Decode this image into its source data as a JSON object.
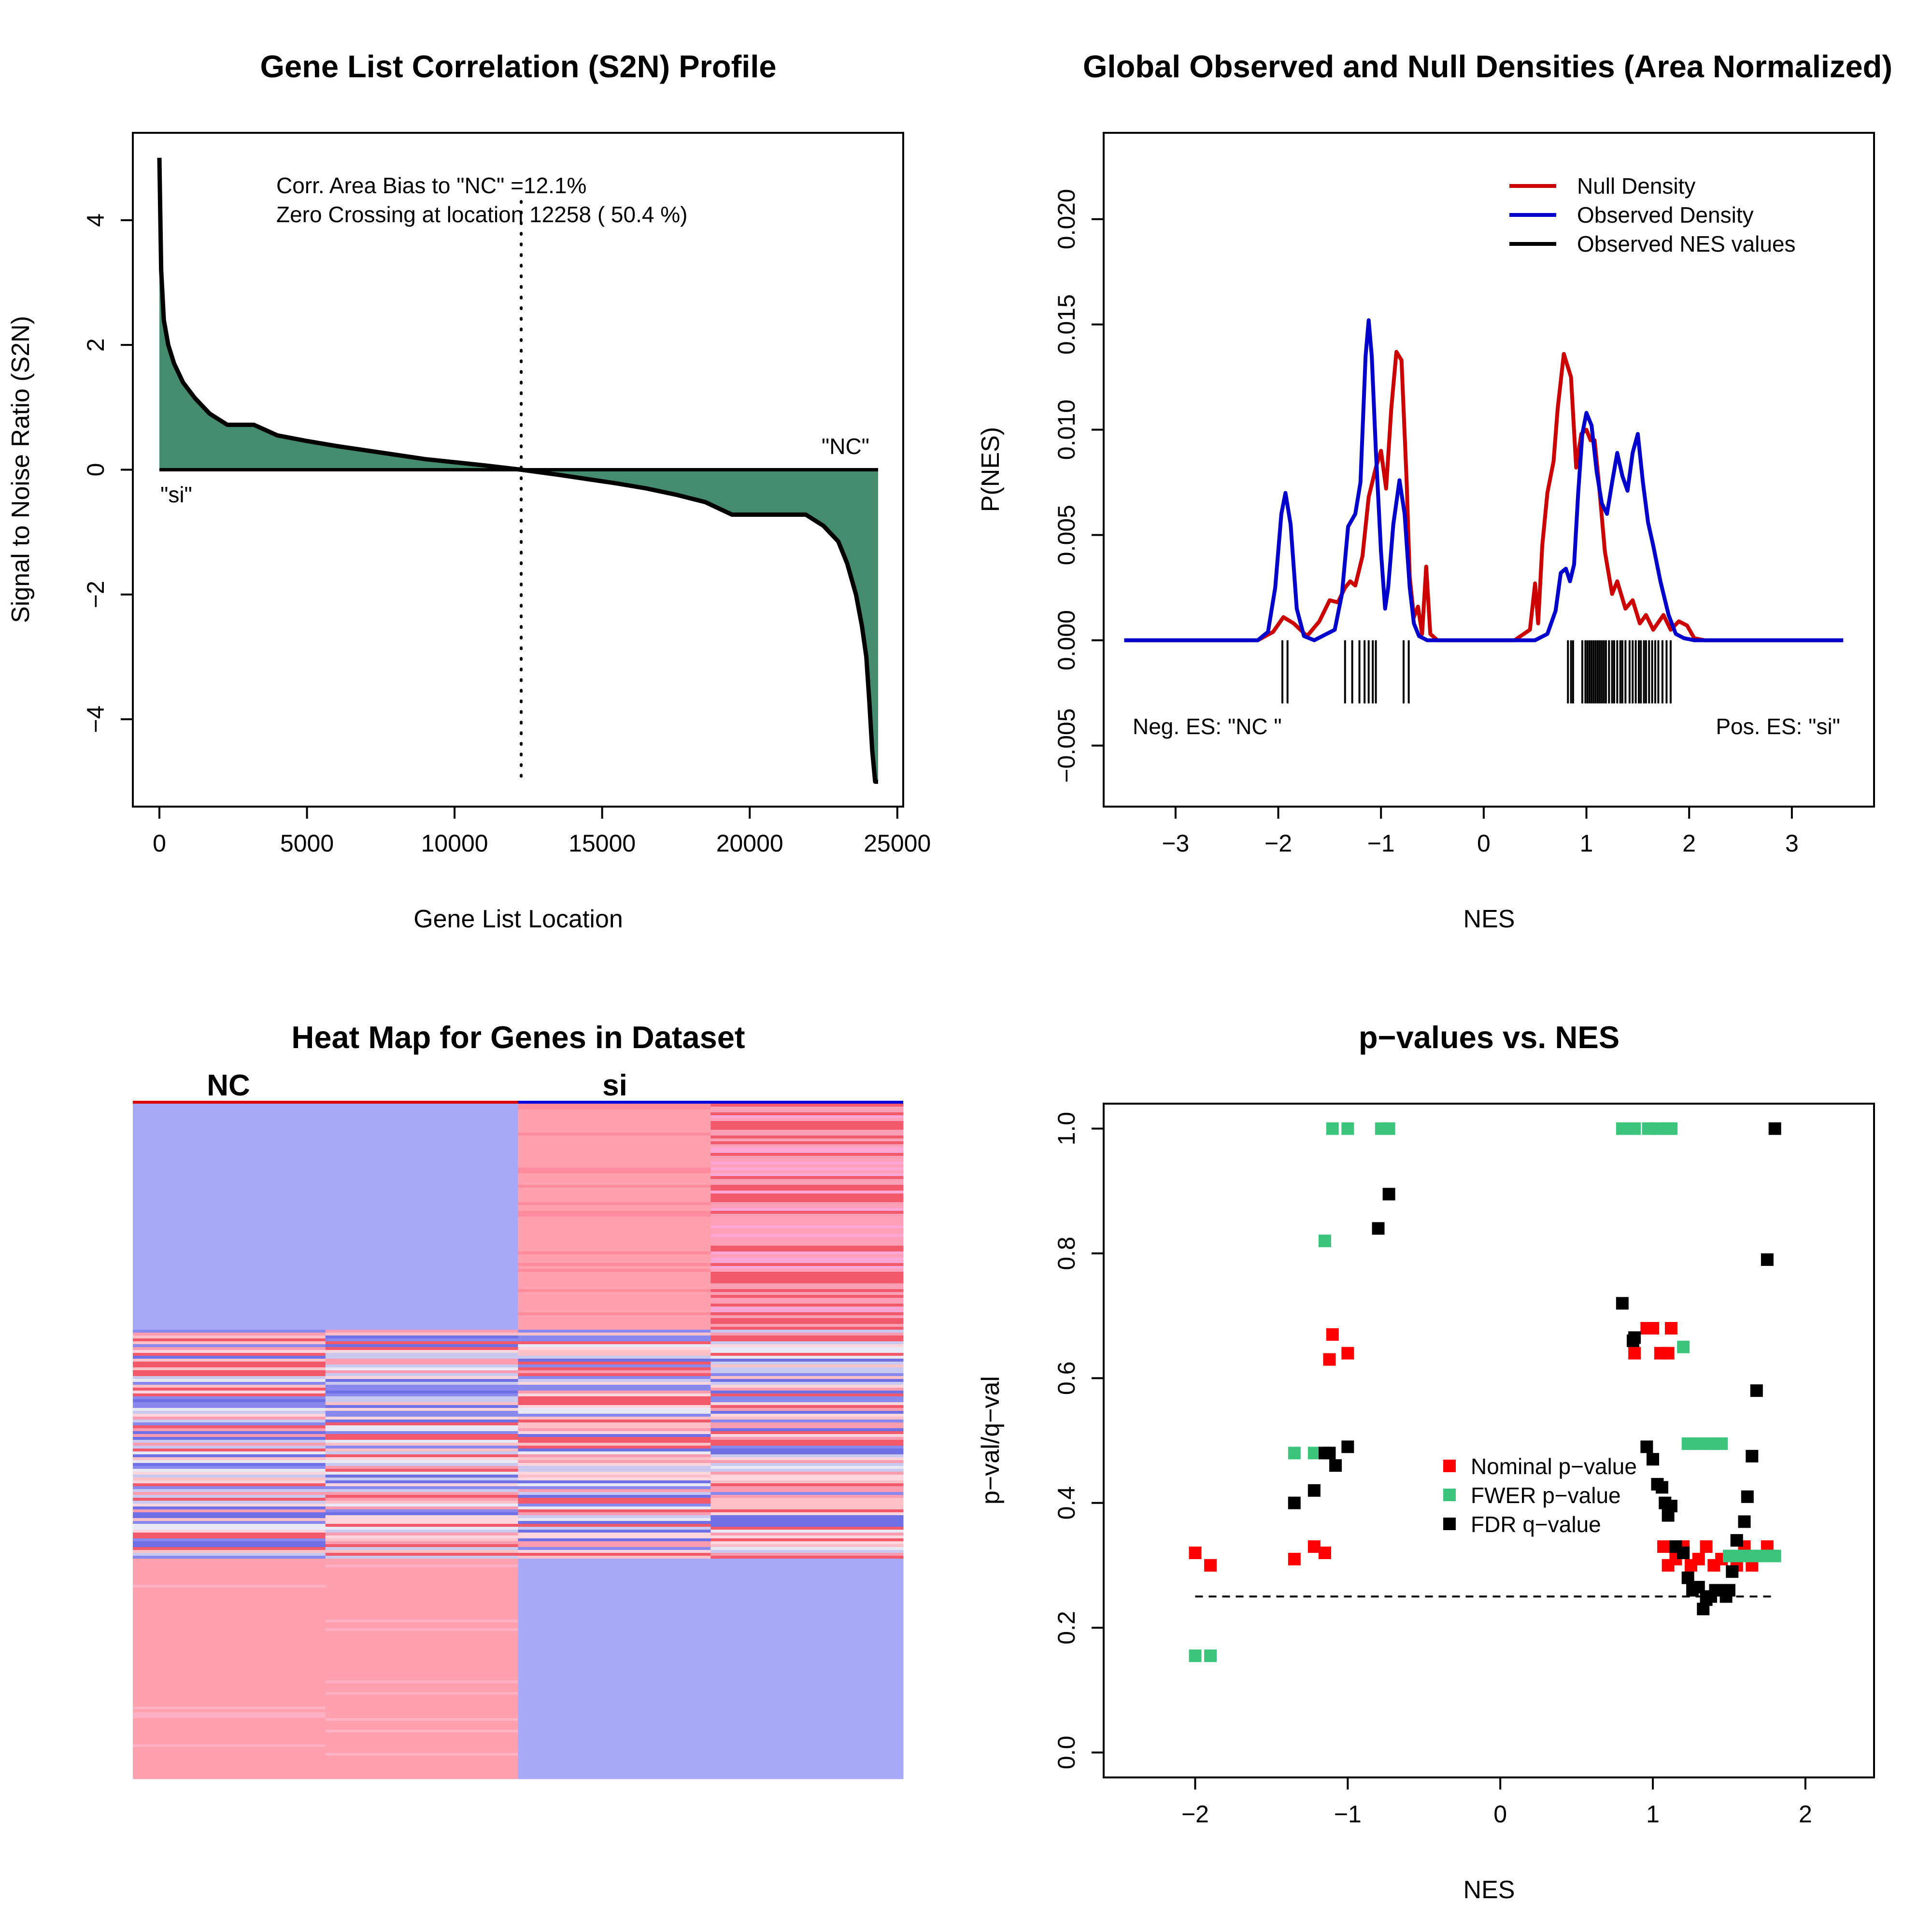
{
  "chart_data": [
    {
      "type": "area",
      "title": "Gene List Correlation (S2N) Profile",
      "xlabel": "Gene List Location",
      "ylabel": "Signal to Noise Ratio (S2N)",
      "xlim": [
        -900,
        25200
      ],
      "ylim": [
        -5.4,
        5.4
      ],
      "xticks": [
        0,
        5000,
        10000,
        15000,
        20000,
        25000
      ],
      "yticks": [
        -4,
        -2,
        0,
        2,
        4
      ],
      "annotations": {
        "bias": "Corr. Area Bias to \"NC\" =12.1%",
        "zero": "Zero Crossing at location  12258  ( 50.4  %)",
        "right_label": "\"NC\"",
        "left_label": "\"si\""
      },
      "zero_crossing": 12258,
      "fill_color": "#458B6F",
      "profile": {
        "x": [
          0,
          60,
          150,
          300,
          500,
          800,
          1200,
          1700,
          2300,
          3200,
          4000,
          5000,
          6000,
          7000,
          8000,
          9000,
          10000,
          11000,
          12258,
          13500,
          14500,
          15500,
          16500,
          17500,
          18500,
          19400,
          20500,
          21900,
          22500,
          23000,
          23300,
          23600,
          23800,
          23950,
          24050,
          24150,
          24250,
          24350
        ],
        "y": [
          5.0,
          3.2,
          2.4,
          2.0,
          1.7,
          1.4,
          1.15,
          0.9,
          0.72,
          0.72,
          0.55,
          0.46,
          0.38,
          0.31,
          0.24,
          0.17,
          0.12,
          0.07,
          0.0,
          -0.08,
          -0.15,
          -0.22,
          -0.3,
          -0.4,
          -0.52,
          -0.72,
          -0.72,
          -0.72,
          -0.9,
          -1.15,
          -1.5,
          -2.0,
          -2.5,
          -3.0,
          -3.7,
          -4.5,
          -5.0,
          -5.0
        ]
      }
    },
    {
      "type": "line",
      "title": "Global Observed and Null Densities (Area Normalized)",
      "xlabel": "NES",
      "ylabel": "P(NES)",
      "xlim": [
        -3.7,
        3.8
      ],
      "ylim": [
        -0.0079,
        0.0241
      ],
      "xticks": [
        -3,
        -2,
        -1,
        0,
        1,
        2,
        3
      ],
      "yticks": [
        -0.005,
        0.0,
        0.005,
        0.01,
        0.015,
        0.02
      ],
      "ytick_labels": [
        "−0.005",
        "0.000",
        "0.005",
        "0.010",
        "0.015",
        "0.020"
      ],
      "series": [
        {
          "name": "Null Density",
          "color": "#CC0000",
          "x": [
            -3.5,
            -2.2,
            -2.05,
            -1.95,
            -1.85,
            -1.72,
            -1.6,
            -1.5,
            -1.42,
            -1.35,
            -1.3,
            -1.25,
            -1.18,
            -1.12,
            -1.05,
            -1.0,
            -0.95,
            -0.9,
            -0.85,
            -0.8,
            -0.75,
            -0.72,
            -0.68,
            -0.64,
            -0.6,
            -0.56,
            -0.52,
            -0.45,
            -0.3,
            0.3,
            0.45,
            0.5,
            0.53,
            0.57,
            0.62,
            0.68,
            0.72,
            0.78,
            0.85,
            0.9,
            0.95,
            1.0,
            1.04,
            1.08,
            1.12,
            1.18,
            1.25,
            1.3,
            1.38,
            1.45,
            1.52,
            1.58,
            1.65,
            1.75,
            1.82,
            1.9,
            1.98,
            2.05,
            2.15,
            3.5
          ],
          "y": [
            0,
            0,
            0.0004,
            0.0011,
            0.0008,
            0.0002,
            0.0009,
            0.0019,
            0.0018,
            0.0025,
            0.0028,
            0.0026,
            0.004,
            0.0068,
            0.0082,
            0.009,
            0.0072,
            0.011,
            0.0137,
            0.0133,
            0.0075,
            0.003,
            0.0011,
            0.0016,
            0.0003,
            0.0035,
            0.0003,
            0.0,
            0,
            0,
            0.0005,
            0.0027,
            0.0008,
            0.0045,
            0.007,
            0.0085,
            0.011,
            0.0136,
            0.0125,
            0.0082,
            0.0098,
            0.01,
            0.0095,
            0.0095,
            0.0075,
            0.0042,
            0.0022,
            0.0028,
            0.0015,
            0.0019,
            0.0008,
            0.0012,
            0.0005,
            0.0012,
            0.0005,
            0.0009,
            0.0007,
            0.0001,
            0,
            0
          ]
        },
        {
          "name": "Observed Density",
          "color": "#0000CC",
          "x": [
            -3.5,
            -2.2,
            -2.1,
            -2.03,
            -1.97,
            -1.93,
            -1.88,
            -1.82,
            -1.75,
            -1.65,
            -1.45,
            -1.38,
            -1.32,
            -1.25,
            -1.2,
            -1.15,
            -1.12,
            -1.09,
            -1.05,
            -1.0,
            -0.96,
            -0.93,
            -0.88,
            -0.82,
            -0.77,
            -0.72,
            -0.68,
            -0.63,
            -0.55,
            -0.45,
            0.5,
            0.62,
            0.7,
            0.75,
            0.8,
            0.84,
            0.88,
            0.92,
            0.96,
            1.0,
            1.05,
            1.1,
            1.15,
            1.2,
            1.25,
            1.3,
            1.35,
            1.4,
            1.45,
            1.5,
            1.55,
            1.6,
            1.65,
            1.72,
            1.8,
            1.87,
            1.95,
            2.05,
            3.5
          ],
          "y": [
            0,
            0,
            0.0004,
            0.0025,
            0.006,
            0.007,
            0.0055,
            0.0015,
            0.0002,
            0,
            0.0005,
            0.0022,
            0.0054,
            0.006,
            0.0075,
            0.0135,
            0.0152,
            0.0135,
            0.009,
            0.0042,
            0.0015,
            0.0025,
            0.0055,
            0.0076,
            0.006,
            0.0025,
            0.0008,
            0.0002,
            0,
            0,
            0,
            0.0003,
            0.0014,
            0.0032,
            0.0034,
            0.0028,
            0.0036,
            0.007,
            0.0098,
            0.0108,
            0.0102,
            0.008,
            0.0065,
            0.006,
            0.0075,
            0.0089,
            0.0078,
            0.0071,
            0.0089,
            0.0098,
            0.0075,
            0.0056,
            0.0045,
            0.0028,
            0.0012,
            0.0003,
            0.0001,
            0,
            0
          ]
        }
      ],
      "rug_label": "Observed NES values",
      "rug": [
        -1.96,
        -1.91,
        -1.35,
        -1.28,
        -1.21,
        -1.16,
        -1.12,
        -1.08,
        -1.05,
        -0.78,
        -0.73,
        0.82,
        0.85,
        0.87,
        0.96,
        0.99,
        1.01,
        1.03,
        1.05,
        1.07,
        1.09,
        1.11,
        1.13,
        1.15,
        1.17,
        1.19,
        1.22,
        1.25,
        1.27,
        1.3,
        1.33,
        1.35,
        1.38,
        1.42,
        1.45,
        1.48,
        1.51,
        1.53,
        1.56,
        1.58,
        1.61,
        1.64,
        1.67,
        1.7,
        1.74,
        1.78,
        1.82
      ],
      "corner_left": "Neg. ES: \"NC \"",
      "corner_right": "Pos. ES: \"si\""
    },
    {
      "type": "heatmap",
      "title": "Heat Map for Genes in Dataset",
      "groups": [
        {
          "label": "NC",
          "color": "#DD0000"
        },
        {
          "label": "si",
          "color": "#0000DD"
        }
      ],
      "columns": 4,
      "blue_color": "#A8A8F8",
      "pink_color": "#FFA0AF",
      "magenta_color": "#FFA6D4",
      "red_color": "#F25A6B"
    },
    {
      "type": "scatter",
      "title": "p−values vs. NES",
      "xlabel": "NES",
      "ylabel": "p−val/q−val",
      "xlim": [
        -2.6,
        2.45
      ],
      "ylim": [
        -0.04,
        1.04
      ],
      "xticks": [
        -2,
        -1,
        0,
        1,
        2
      ],
      "yticks": [
        0.0,
        0.2,
        0.4,
        0.6,
        0.8,
        1.0
      ],
      "threshold": 0.25,
      "series": [
        {
          "name": "Nominal p−value",
          "color": "#FF0000",
          "points": [
            [
              -2.0,
              0.32
            ],
            [
              -1.9,
              0.3
            ],
            [
              -1.35,
              0.31
            ],
            [
              -1.22,
              0.33
            ],
            [
              -1.15,
              0.32
            ],
            [
              -1.12,
              0.63
            ],
            [
              -1.1,
              0.67
            ],
            [
              -1.0,
              0.64
            ],
            [
              0.88,
              0.64
            ],
            [
              0.96,
              0.68
            ],
            [
              1.0,
              0.68
            ],
            [
              1.05,
              0.64
            ],
            [
              1.1,
              0.64
            ],
            [
              1.12,
              0.68
            ],
            [
              1.07,
              0.33
            ],
            [
              1.1,
              0.3
            ],
            [
              1.15,
              0.31
            ],
            [
              1.2,
              0.33
            ],
            [
              1.25,
              0.3
            ],
            [
              1.3,
              0.31
            ],
            [
              1.35,
              0.33
            ],
            [
              1.4,
              0.3
            ],
            [
              1.45,
              0.31
            ],
            [
              1.55,
              0.3
            ],
            [
              1.6,
              0.33
            ],
            [
              1.65,
              0.3
            ],
            [
              1.75,
              0.33
            ]
          ]
        },
        {
          "name": "FWER p−value",
          "color": "#3CC47C",
          "points": [
            [
              -2.0,
              0.155
            ],
            [
              -1.9,
              0.155
            ],
            [
              -1.35,
              0.48
            ],
            [
              -1.22,
              0.48
            ],
            [
              -1.15,
              0.82
            ],
            [
              -1.1,
              1.0
            ],
            [
              -1.0,
              1.0
            ],
            [
              -0.78,
              1.0
            ],
            [
              -0.73,
              1.0
            ],
            [
              0.8,
              1.0
            ],
            [
              0.88,
              1.0
            ],
            [
              0.97,
              1.0
            ],
            [
              1.03,
              1.0
            ],
            [
              1.1,
              1.0
            ],
            [
              1.12,
              1.0
            ],
            [
              1.2,
              0.65
            ],
            [
              1.23,
              0.495
            ],
            [
              1.3,
              0.495
            ],
            [
              1.38,
              0.495
            ],
            [
              1.45,
              0.495
            ],
            [
              1.5,
              0.315
            ],
            [
              1.55,
              0.315
            ],
            [
              1.6,
              0.315
            ],
            [
              1.68,
              0.315
            ],
            [
              1.75,
              0.315
            ],
            [
              1.8,
              0.315
            ]
          ]
        },
        {
          "name": "FDR q−value",
          "color": "#000000",
          "points": [
            [
              -1.35,
              0.4
            ],
            [
              -1.22,
              0.42
            ],
            [
              -1.15,
              0.48
            ],
            [
              -1.12,
              0.48
            ],
            [
              -1.08,
              0.46
            ],
            [
              -1.0,
              0.49
            ],
            [
              -0.8,
              0.84
            ],
            [
              -0.73,
              0.895
            ],
            [
              0.8,
              0.72
            ],
            [
              0.88,
              0.665
            ],
            [
              0.87,
              0.66
            ],
            [
              0.96,
              0.49
            ],
            [
              1.0,
              0.47
            ],
            [
              1.03,
              0.43
            ],
            [
              1.06,
              0.425
            ],
            [
              1.08,
              0.4
            ],
            [
              1.1,
              0.38
            ],
            [
              1.12,
              0.395
            ],
            [
              1.15,
              0.33
            ],
            [
              1.2,
              0.32
            ],
            [
              1.23,
              0.28
            ],
            [
              1.26,
              0.26
            ],
            [
              1.3,
              0.265
            ],
            [
              1.33,
              0.23
            ],
            [
              1.35,
              0.245
            ],
            [
              1.38,
              0.25
            ],
            [
              1.41,
              0.26
            ],
            [
              1.44,
              0.26
            ],
            [
              1.48,
              0.25
            ],
            [
              1.5,
              0.26
            ],
            [
              1.52,
              0.29
            ],
            [
              1.55,
              0.34
            ],
            [
              1.6,
              0.37
            ],
            [
              1.62,
              0.41
            ],
            [
              1.65,
              0.475
            ],
            [
              1.68,
              0.58
            ],
            [
              1.75,
              0.79
            ],
            [
              1.8,
              1.0
            ]
          ]
        }
      ]
    }
  ]
}
